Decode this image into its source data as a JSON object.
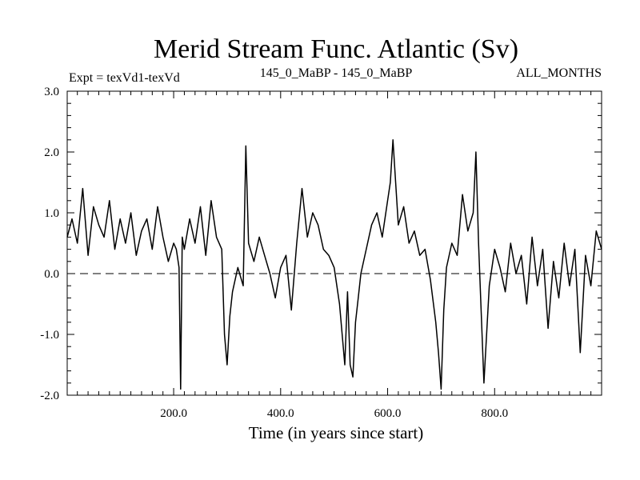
{
  "chart_data": {
    "type": "line",
    "title": "Merid Stream Func. Atlantic (Sv)",
    "subtitle_left": "Expt = texVd1-texVd",
    "subtitle_center": "145_0_MaBP - 145_0_MaBP",
    "subtitle_right": "ALL_MONTHS",
    "xlabel": "Time (in years since start)",
    "ylabel": "",
    "xlim": [
      1,
      1000
    ],
    "ylim": [
      -2.0,
      3.0
    ],
    "xticks": [
      200,
      400,
      600,
      800
    ],
    "xtick_labels": [
      "200.0",
      "400.0",
      "600.0",
      "800.0"
    ],
    "yticks": [
      -2.0,
      -1.0,
      0.0,
      1.0,
      2.0,
      3.0
    ],
    "ytick_labels": [
      "-2.0",
      "-1.0",
      "0.0",
      "1.0",
      "2.0",
      "3.0"
    ],
    "zero_line": "dashed",
    "grid": false,
    "color": "#000000",
    "series": [
      {
        "x": [
          1,
          10,
          20,
          30,
          40,
          50,
          60,
          70,
          80,
          90,
          100,
          110,
          120,
          130,
          140,
          150,
          160,
          170,
          180,
          190,
          200,
          205,
          210,
          213,
          216,
          220,
          230,
          240,
          250,
          260,
          270,
          280,
          290,
          295,
          300,
          305,
          310,
          320,
          330,
          335,
          340,
          350,
          360,
          370,
          380,
          390,
          400,
          410,
          420,
          430,
          440,
          450,
          460,
          470,
          480,
          490,
          500,
          510,
          520,
          525,
          530,
          535,
          540,
          545,
          550,
          560,
          570,
          580,
          590,
          600,
          605,
          610,
          620,
          630,
          640,
          650,
          660,
          670,
          680,
          690,
          695,
          700,
          705,
          710,
          720,
          730,
          740,
          750,
          760,
          765,
          770,
          780,
          790,
          800,
          810,
          820,
          830,
          840,
          850,
          860,
          870,
          880,
          890,
          900,
          910,
          920,
          930,
          940,
          950,
          960,
          970,
          980,
          990,
          1000
        ],
        "y": [
          0.6,
          0.9,
          0.5,
          1.4,
          0.3,
          1.1,
          0.8,
          0.6,
          1.2,
          0.4,
          0.9,
          0.5,
          1.0,
          0.3,
          0.7,
          0.9,
          0.4,
          1.1,
          0.6,
          0.2,
          0.5,
          0.4,
          0.1,
          -1.9,
          0.6,
          0.4,
          0.9,
          0.5,
          1.1,
          0.3,
          1.2,
          0.6,
          0.4,
          -1.0,
          -1.5,
          -0.7,
          -0.3,
          0.1,
          -0.2,
          2.1,
          0.5,
          0.2,
          0.6,
          0.3,
          0.0,
          -0.4,
          0.1,
          0.3,
          -0.6,
          0.5,
          1.4,
          0.6,
          1.0,
          0.8,
          0.4,
          0.3,
          0.1,
          -0.5,
          -1.5,
          -0.3,
          -1.5,
          -1.7,
          -0.8,
          -0.4,
          0.0,
          0.4,
          0.8,
          1.0,
          0.6,
          1.2,
          1.5,
          2.2,
          0.8,
          1.1,
          0.5,
          0.7,
          0.3,
          0.4,
          -0.1,
          -0.8,
          -1.3,
          -1.9,
          -0.6,
          0.1,
          0.5,
          0.3,
          1.3,
          0.7,
          1.0,
          2.0,
          0.5,
          -1.8,
          -0.2,
          0.4,
          0.1,
          -0.3,
          0.5,
          0.0,
          0.3,
          -0.5,
          0.6,
          -0.2,
          0.4,
          -0.9,
          0.2,
          -0.4,
          0.5,
          -0.2,
          0.4,
          -1.3,
          0.3,
          -0.2,
          0.7,
          0.4
        ]
      }
    ]
  }
}
